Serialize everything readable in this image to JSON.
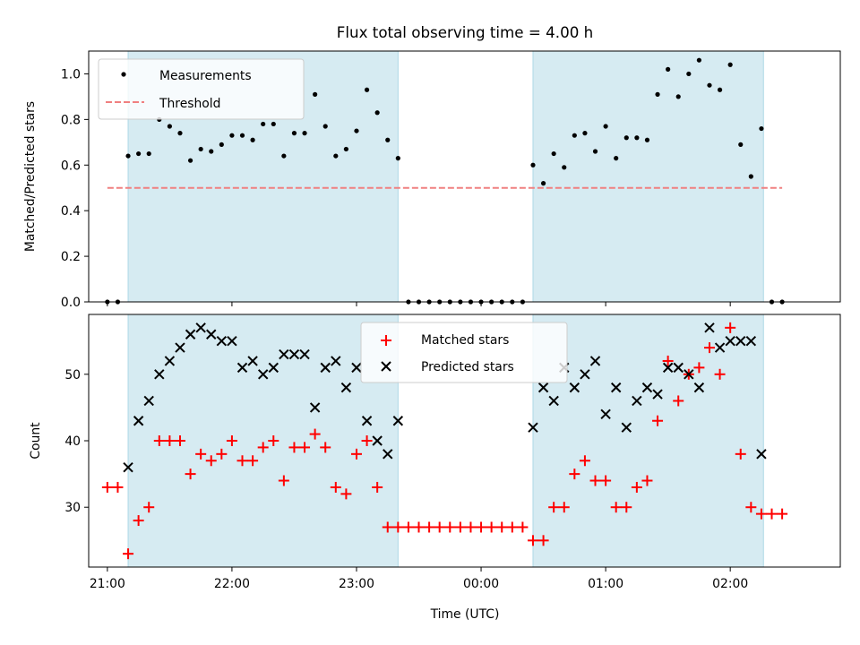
{
  "title": "Flux total observing time = 4.00 h",
  "chart_data": [
    {
      "type": "scatter",
      "ylabel": "Matched/Predicted stars",
      "ylim": [
        0,
        1.1
      ],
      "yticks": [
        "0.0",
        "0.2",
        "0.4",
        "0.6",
        "0.8",
        "1.0"
      ],
      "xlim": [
        "20:51",
        "02:53"
      ],
      "shaded_intervals": [
        [
          "21:10",
          "23:20"
        ],
        [
          "00:25",
          "02:16"
        ]
      ],
      "legend": {
        "position": "top-left",
        "items": [
          "Measurements",
          "Threshold"
        ]
      },
      "threshold": {
        "name": "Threshold",
        "value": 0.5,
        "from": "21:00",
        "to": "02:25",
        "color": "#f08080"
      },
      "series": [
        {
          "name": "Measurements",
          "color": "#000000",
          "points": [
            [
              "21:00",
              0
            ],
            [
              "21:05",
              0
            ],
            [
              "21:10",
              0.64
            ],
            [
              "21:15",
              0.65
            ],
            [
              "21:20",
              0.65
            ],
            [
              "21:25",
              0.8
            ],
            [
              "21:30",
              0.77
            ],
            [
              "21:35",
              0.74
            ],
            [
              "21:40",
              0.62
            ],
            [
              "21:45",
              0.67
            ],
            [
              "21:50",
              0.66
            ],
            [
              "21:55",
              0.69
            ],
            [
              "22:00",
              0.73
            ],
            [
              "22:05",
              0.73
            ],
            [
              "22:10",
              0.71
            ],
            [
              "22:15",
              0.78
            ],
            [
              "22:20",
              0.78
            ],
            [
              "22:25",
              0.64
            ],
            [
              "22:30",
              0.74
            ],
            [
              "22:35",
              0.74
            ],
            [
              "22:40",
              0.91
            ],
            [
              "22:45",
              0.77
            ],
            [
              "22:50",
              0.64
            ],
            [
              "22:55",
              0.67
            ],
            [
              "23:00",
              0.75
            ],
            [
              "23:05",
              0.93
            ],
            [
              "23:10",
              0.83
            ],
            [
              "23:15",
              0.71
            ],
            [
              "23:20",
              0.63
            ],
            [
              "23:25",
              0
            ],
            [
              "23:30",
              0
            ],
            [
              "23:35",
              0
            ],
            [
              "23:40",
              0
            ],
            [
              "23:45",
              0
            ],
            [
              "23:50",
              0
            ],
            [
              "23:55",
              0
            ],
            [
              "00:00",
              0
            ],
            [
              "00:05",
              0
            ],
            [
              "00:10",
              0
            ],
            [
              "00:15",
              0
            ],
            [
              "00:20",
              0
            ],
            [
              "00:25",
              0.6
            ],
            [
              "00:30",
              0.52
            ],
            [
              "00:35",
              0.65
            ],
            [
              "00:40",
              0.59
            ],
            [
              "00:45",
              0.73
            ],
            [
              "00:50",
              0.74
            ],
            [
              "00:55",
              0.66
            ],
            [
              "01:00",
              0.77
            ],
            [
              "01:05",
              0.63
            ],
            [
              "01:10",
              0.72
            ],
            [
              "01:15",
              0.72
            ],
            [
              "01:20",
              0.71
            ],
            [
              "01:25",
              0.91
            ],
            [
              "01:30",
              1.02
            ],
            [
              "01:35",
              0.9
            ],
            [
              "01:40",
              1.0
            ],
            [
              "01:45",
              1.06
            ],
            [
              "01:50",
              0.95
            ],
            [
              "01:55",
              0.93
            ],
            [
              "02:00",
              1.04
            ],
            [
              "02:05",
              0.69
            ],
            [
              "02:10",
              0.55
            ],
            [
              "02:15",
              0.76
            ],
            [
              "02:20",
              0
            ],
            [
              "02:25",
              0
            ]
          ]
        }
      ]
    },
    {
      "type": "scatter",
      "ylabel": "Count",
      "xlabel": "Time (UTC)",
      "ylim": [
        21,
        59
      ],
      "yticks": [
        "30",
        "40",
        "50"
      ],
      "xticks": [
        "21:00",
        "22:00",
        "23:00",
        "00:00",
        "01:00",
        "02:00"
      ],
      "xlim": [
        "20:51",
        "02:53"
      ],
      "shaded_intervals": [
        [
          "21:10",
          "23:20"
        ],
        [
          "00:25",
          "02:16"
        ]
      ],
      "legend": {
        "position": "top-center",
        "items": [
          "Matched stars",
          "Predicted stars"
        ]
      },
      "series": [
        {
          "name": "Matched stars",
          "marker": "plus",
          "color": "#ff0000",
          "points": [
            [
              "21:00",
              33
            ],
            [
              "21:05",
              33
            ],
            [
              "21:10",
              23
            ],
            [
              "21:15",
              28
            ],
            [
              "21:20",
              30
            ],
            [
              "21:25",
              40
            ],
            [
              "21:30",
              40
            ],
            [
              "21:35",
              40
            ],
            [
              "21:40",
              35
            ],
            [
              "21:45",
              38
            ],
            [
              "21:50",
              37
            ],
            [
              "21:55",
              38
            ],
            [
              "22:00",
              40
            ],
            [
              "22:05",
              37
            ],
            [
              "22:10",
              37
            ],
            [
              "22:15",
              39
            ],
            [
              "22:20",
              40
            ],
            [
              "22:25",
              34
            ],
            [
              "22:30",
              39
            ],
            [
              "22:35",
              39
            ],
            [
              "22:40",
              41
            ],
            [
              "22:45",
              39
            ],
            [
              "22:50",
              33
            ],
            [
              "22:55",
              32
            ],
            [
              "23:00",
              38
            ],
            [
              "23:05",
              40
            ],
            [
              "23:10",
              33
            ],
            [
              "23:15",
              27
            ],
            [
              "23:20",
              27
            ],
            [
              "23:25",
              27
            ],
            [
              "23:30",
              27
            ],
            [
              "23:35",
              27
            ],
            [
              "23:40",
              27
            ],
            [
              "23:45",
              27
            ],
            [
              "23:50",
              27
            ],
            [
              "23:55",
              27
            ],
            [
              "00:00",
              27
            ],
            [
              "00:05",
              27
            ],
            [
              "00:10",
              27
            ],
            [
              "00:15",
              27
            ],
            [
              "00:20",
              27
            ],
            [
              "00:25",
              25
            ],
            [
              "00:30",
              25
            ],
            [
              "00:35",
              30
            ],
            [
              "00:40",
              30
            ],
            [
              "00:45",
              35
            ],
            [
              "00:50",
              37
            ],
            [
              "00:55",
              34
            ],
            [
              "01:00",
              34
            ],
            [
              "01:05",
              30
            ],
            [
              "01:10",
              30
            ],
            [
              "01:15",
              33
            ],
            [
              "01:20",
              34
            ],
            [
              "01:25",
              43
            ],
            [
              "01:30",
              52
            ],
            [
              "01:35",
              46
            ],
            [
              "01:40",
              50
            ],
            [
              "01:45",
              51
            ],
            [
              "01:50",
              54
            ],
            [
              "01:55",
              50
            ],
            [
              "02:00",
              57
            ],
            [
              "02:05",
              38
            ],
            [
              "02:10",
              30
            ],
            [
              "02:15",
              29
            ],
            [
              "02:20",
              29
            ],
            [
              "02:25",
              29
            ]
          ]
        },
        {
          "name": "Predicted stars",
          "marker": "x",
          "color": "#000000",
          "points": [
            [
              "21:10",
              36
            ],
            [
              "21:15",
              43
            ],
            [
              "21:20",
              46
            ],
            [
              "21:25",
              50
            ],
            [
              "21:30",
              52
            ],
            [
              "21:35",
              54
            ],
            [
              "21:40",
              56
            ],
            [
              "21:45",
              57
            ],
            [
              "21:50",
              56
            ],
            [
              "21:55",
              55
            ],
            [
              "22:00",
              55
            ],
            [
              "22:05",
              51
            ],
            [
              "22:10",
              52
            ],
            [
              "22:15",
              50
            ],
            [
              "22:20",
              51
            ],
            [
              "22:25",
              53
            ],
            [
              "22:30",
              53
            ],
            [
              "22:35",
              53
            ],
            [
              "22:40",
              45
            ],
            [
              "22:45",
              51
            ],
            [
              "22:50",
              52
            ],
            [
              "22:55",
              48
            ],
            [
              "23:00",
              51
            ],
            [
              "23:05",
              43
            ],
            [
              "23:10",
              40
            ],
            [
              "23:15",
              38
            ],
            [
              "23:20",
              43
            ],
            [
              "00:25",
              42
            ],
            [
              "00:30",
              48
            ],
            [
              "00:35",
              46
            ],
            [
              "00:40",
              51
            ],
            [
              "00:45",
              48
            ],
            [
              "00:50",
              50
            ],
            [
              "00:55",
              52
            ],
            [
              "01:00",
              44
            ],
            [
              "01:05",
              48
            ],
            [
              "01:10",
              42
            ],
            [
              "01:15",
              46
            ],
            [
              "01:20",
              48
            ],
            [
              "01:25",
              47
            ],
            [
              "01:30",
              51
            ],
            [
              "01:35",
              51
            ],
            [
              "01:40",
              50
            ],
            [
              "01:45",
              48
            ],
            [
              "01:50",
              57
            ],
            [
              "01:55",
              54
            ],
            [
              "02:00",
              55
            ],
            [
              "02:05",
              55
            ],
            [
              "02:10",
              55
            ],
            [
              "02:15",
              38
            ]
          ]
        }
      ]
    }
  ]
}
